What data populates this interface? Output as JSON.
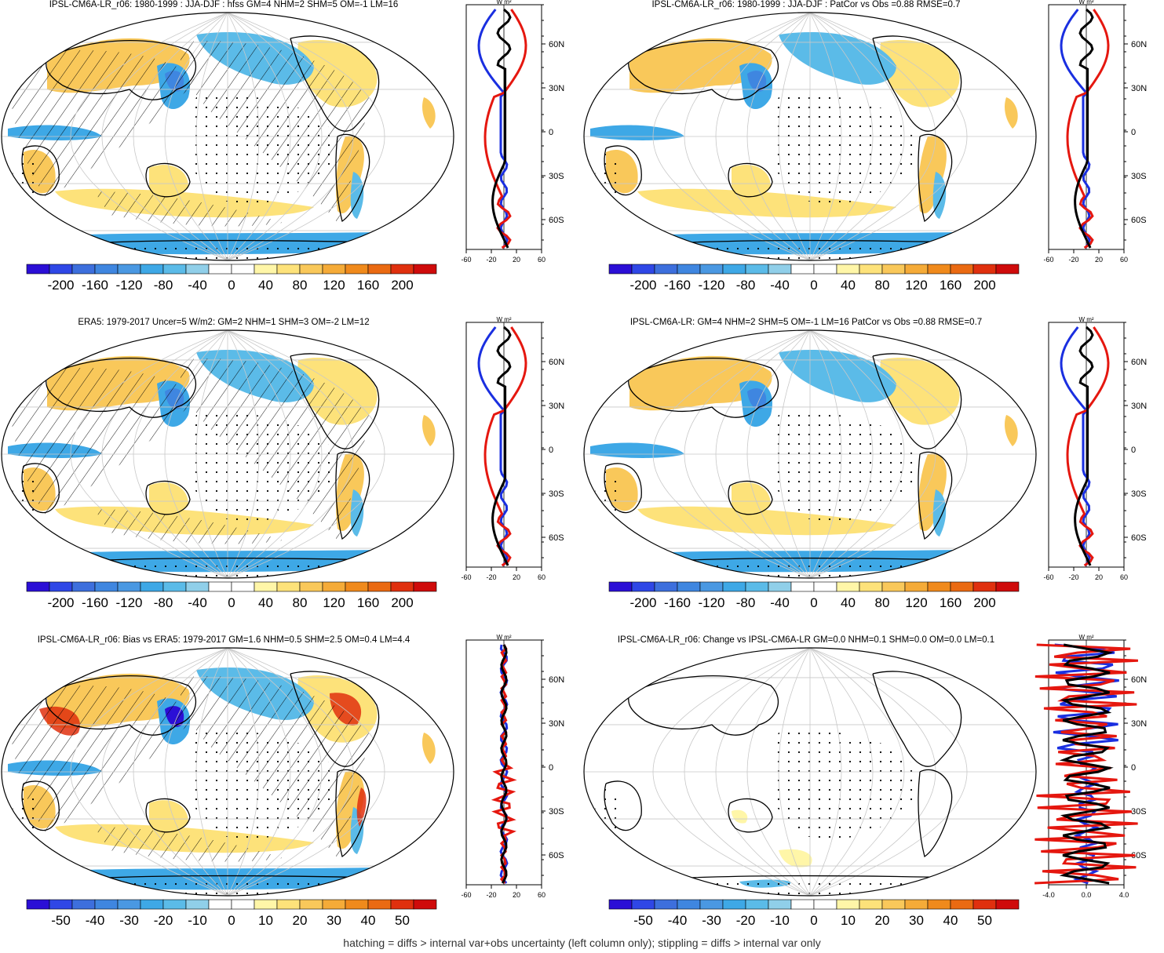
{
  "colors": [
    "#2b0fd6",
    "#2f47e6",
    "#3d6fdd",
    "#3f86e0",
    "#4a98e2",
    "#3ea8e6",
    "#5bbbe8",
    "#90cfe9",
    "#ffffff",
    "#ffffff",
    "#fff6a8",
    "#fde27a",
    "#f9c85a",
    "#f5ab38",
    "#f08a1c",
    "#ea6a12",
    "#e0300e",
    "#cf0b0b"
  ],
  "footer": "hatching = diffs > internal var+obs uncertainty (left column only); stippling = diffs > internal var only",
  "panels": [
    {
      "title": "IPSL-CM6A-LR_r06: 1980-1999 : JJA-DJF : hfss GM=4 NHM=2 SHM=5 OM=-1 LM=16",
      "unit_label": "W m²",
      "chart_data": {
        "type": "heatmap",
        "colorbar_ticks": [
          "-200",
          "-160",
          "-120",
          "-80",
          "-40",
          "0",
          "40",
          "80",
          "120",
          "160",
          "200"
        ],
        "zonal": {
          "xlim": [
            -60,
            60
          ],
          "xticks": [
            "-60",
            "-20",
            "20",
            "60"
          ],
          "yticks": [
            "60N",
            "30N",
            "0",
            "30S",
            "60S"
          ]
        }
      }
    },
    {
      "title": "IPSL-CM6A-LR_r06: 1980-1999 : JJA-DJF : PatCor vs Obs =0.88 RMSE=0.7",
      "unit_label": "W m²",
      "chart_data": {
        "type": "heatmap",
        "colorbar_ticks": [
          "-200",
          "-160",
          "-120",
          "-80",
          "-40",
          "0",
          "40",
          "80",
          "120",
          "160",
          "200"
        ],
        "zonal": {
          "xlim": [
            -60,
            60
          ],
          "xticks": [
            "-60",
            "-20",
            "20",
            "60"
          ],
          "yticks": [
            "60N",
            "30N",
            "0",
            "30S",
            "60S"
          ]
        }
      }
    },
    {
      "title": "ERA5: 1979-2017 Uncer=5 W/m2: GM=2 NHM=1 SHM=3 OM=-2 LM=12",
      "unit_label": "W m²",
      "chart_data": {
        "type": "heatmap",
        "colorbar_ticks": [
          "-200",
          "-160",
          "-120",
          "-80",
          "-40",
          "0",
          "40",
          "80",
          "120",
          "160",
          "200"
        ],
        "zonal": {
          "xlim": [
            -60,
            60
          ],
          "xticks": [
            "-60",
            "-20",
            "20",
            "60"
          ],
          "yticks": [
            "60N",
            "30N",
            "0",
            "30S",
            "60S"
          ]
        }
      }
    },
    {
      "title": "IPSL-CM6A-LR: GM=4 NHM=2 SHM=5 OM=-1 LM=16 PatCor vs Obs =0.88 RMSE=0.7",
      "unit_label": "W m²",
      "chart_data": {
        "type": "heatmap",
        "colorbar_ticks": [
          "-200",
          "-160",
          "-120",
          "-80",
          "-40",
          "0",
          "40",
          "80",
          "120",
          "160",
          "200"
        ],
        "zonal": {
          "xlim": [
            -60,
            60
          ],
          "xticks": [
            "-60",
            "-20",
            "20",
            "60"
          ],
          "yticks": [
            "60N",
            "30N",
            "0",
            "30S",
            "60S"
          ]
        }
      }
    },
    {
      "title": "IPSL-CM6A-LR_r06: Bias vs ERA5: 1979-2017 GM=1.6 NHM=0.5 SHM=2.5 OM=0.4 LM=4.4",
      "unit_label": "W m²",
      "chart_data": {
        "type": "heatmap",
        "colorbar_ticks": [
          "-50",
          "-40",
          "-30",
          "-20",
          "-10",
          "0",
          "10",
          "20",
          "30",
          "40",
          "50"
        ],
        "zonal": {
          "xlim": [
            -60,
            60
          ],
          "xticks": [
            "-60",
            "-20",
            "20",
            "60"
          ],
          "yticks": [
            "60N",
            "30N",
            "0",
            "30S",
            "60S"
          ]
        }
      }
    },
    {
      "title": "IPSL-CM6A-LR_r06: Change vs IPSL-CM6A-LR GM=0.0 NHM=0.1 SHM=0.0 OM=0.0 LM=0.1",
      "unit_label": "W m²",
      "chart_data": {
        "type": "heatmap",
        "colorbar_ticks": [
          "-50",
          "-40",
          "-30",
          "-20",
          "-10",
          "0",
          "10",
          "20",
          "30",
          "40",
          "50"
        ],
        "zonal": {
          "xlim": [
            -4,
            4
          ],
          "xticks": [
            "-4.0",
            "0.0",
            "4.0"
          ],
          "yticks": [
            "60N",
            "30N",
            "0",
            "30S",
            "60S"
          ]
        }
      }
    }
  ]
}
